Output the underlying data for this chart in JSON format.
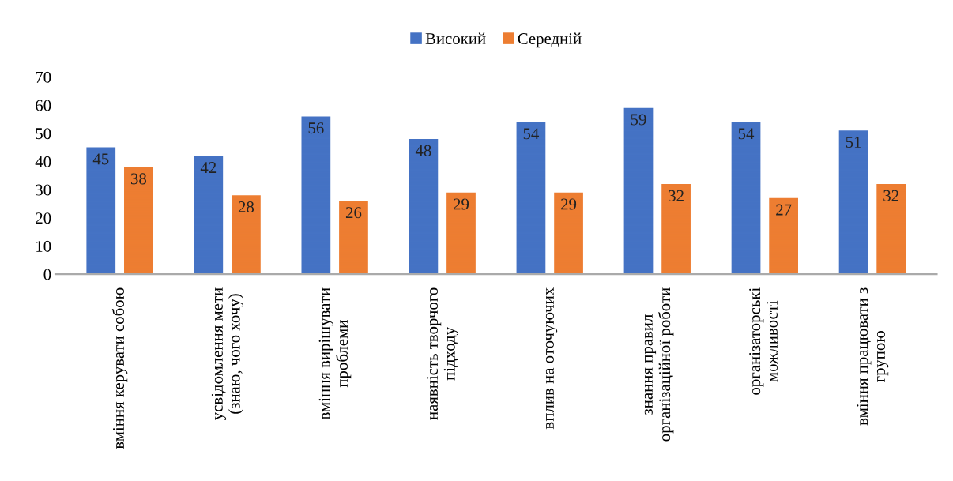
{
  "chart_data": {
    "type": "bar",
    "categories": [
      "вміння керувати собою",
      "усвідомлення мети\n(знаю, чого хочу)",
      "вміння вирішувати\nпроблеми",
      "наявність творчого\nпідходу",
      "вплив на оточуючих",
      "знання правил\nорганізаційної роботи",
      "організаторські\nможливості",
      "вміння працювати з\nгрупою"
    ],
    "series": [
      {
        "name": "Високий",
        "color": "#4472c4",
        "values": [
          45,
          42,
          56,
          48,
          54,
          59,
          54,
          51
        ]
      },
      {
        "name": "Середній",
        "color": "#ed7d31",
        "values": [
          38,
          28,
          26,
          29,
          29,
          32,
          27,
          32
        ]
      }
    ],
    "ylim": [
      0,
      70
    ],
    "yticks": [
      0,
      10,
      20,
      30,
      40,
      50,
      60,
      70
    ],
    "data_labels": true,
    "legend": "top",
    "grid": false
  }
}
